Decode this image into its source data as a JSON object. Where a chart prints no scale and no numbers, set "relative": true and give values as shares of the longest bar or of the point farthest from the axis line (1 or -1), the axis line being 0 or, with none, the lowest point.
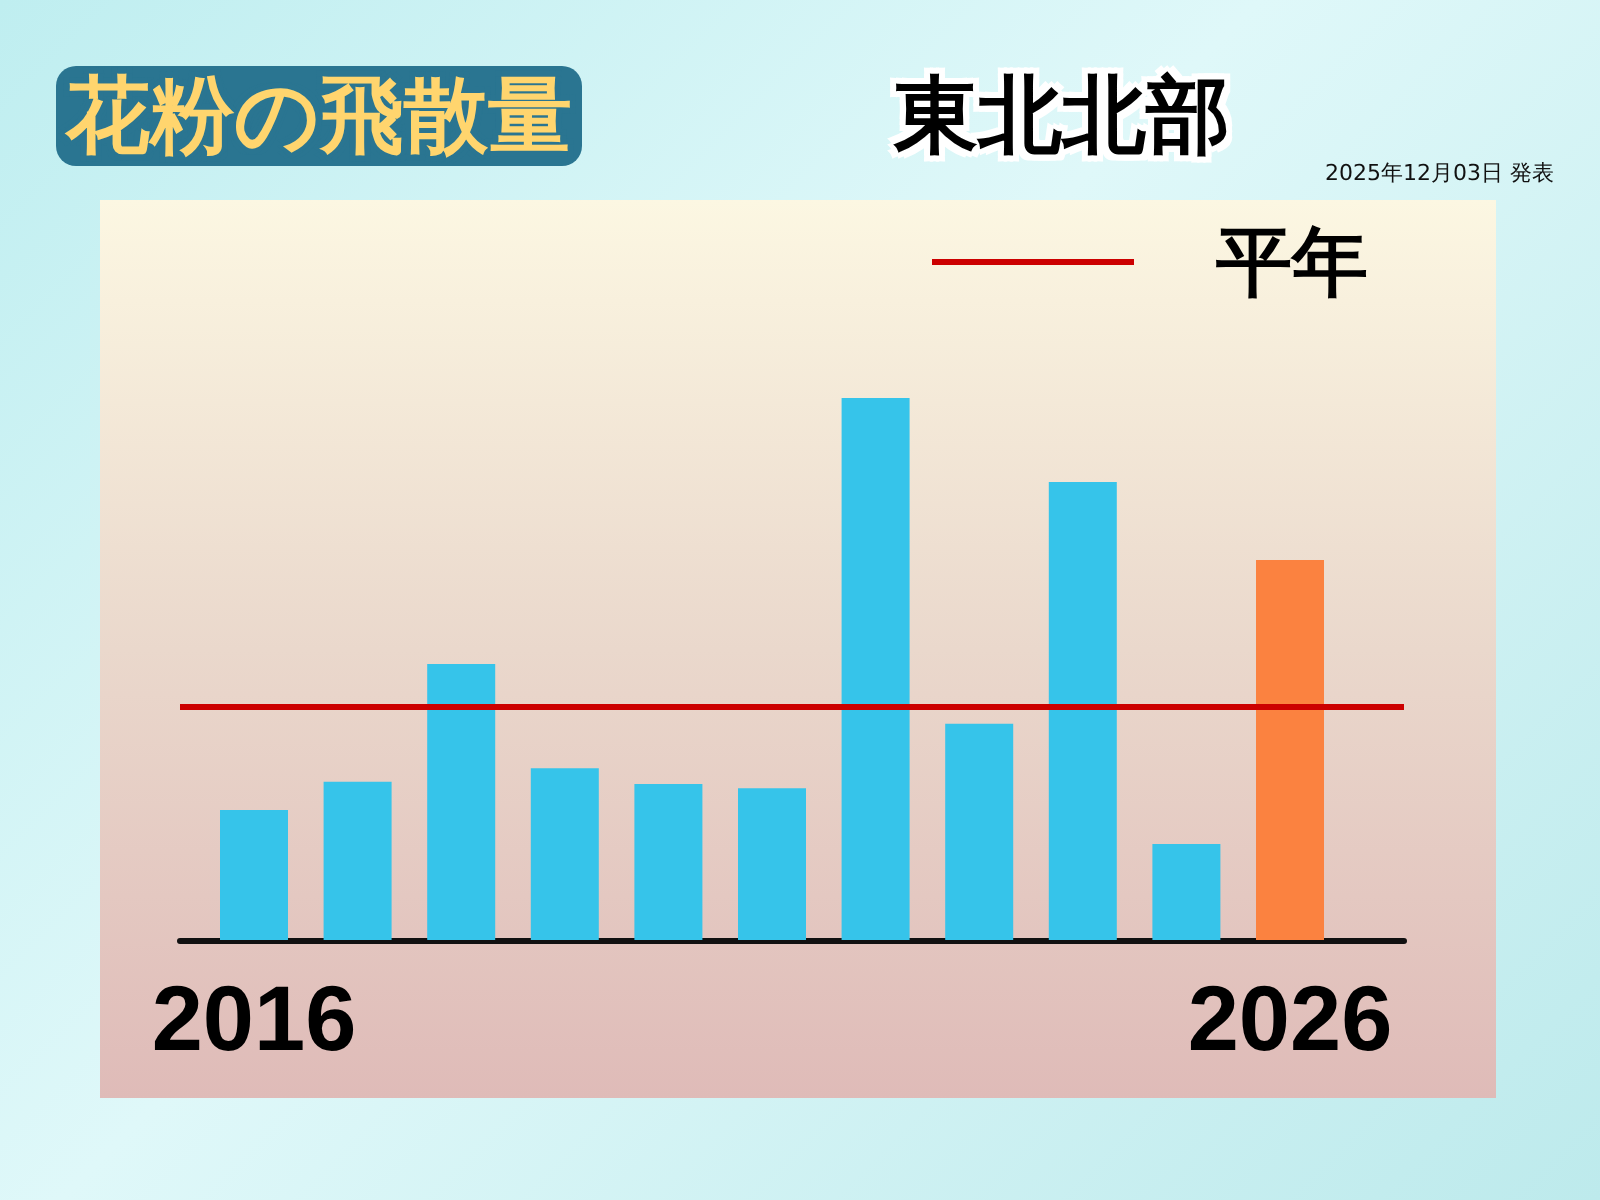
{
  "chart_data": {
    "type": "bar",
    "title": "花粉の飛散量",
    "subtitle": "東北北部",
    "annotations": [
      "2025年12月03日 発表"
    ],
    "categories": [
      "2016",
      null,
      null,
      null,
      null,
      null,
      null,
      null,
      null,
      null,
      "2026"
    ],
    "values": [
      0.24,
      0.292,
      0.509,
      0.317,
      0.288,
      0.28,
      1,
      0.399,
      0.845,
      0.177,
      0.701
    ],
    "colors": [
      "#36c4ea",
      "#36c4ea",
      "#36c4ea",
      "#36c4ea",
      "#36c4ea",
      "#36c4ea",
      "#36c4ea",
      "#36c4ea",
      "#36c4ea",
      "#36c4ea",
      "#fb8240"
    ],
    "relative": true,
    "ref_lines": [
      {
        "axis": "y",
        "value": 0.431,
        "label": "平年",
        "color": "#cc0000"
      }
    ],
    "legend": "top right",
    "grid": false,
    "tick_labels": "x"
  }
}
